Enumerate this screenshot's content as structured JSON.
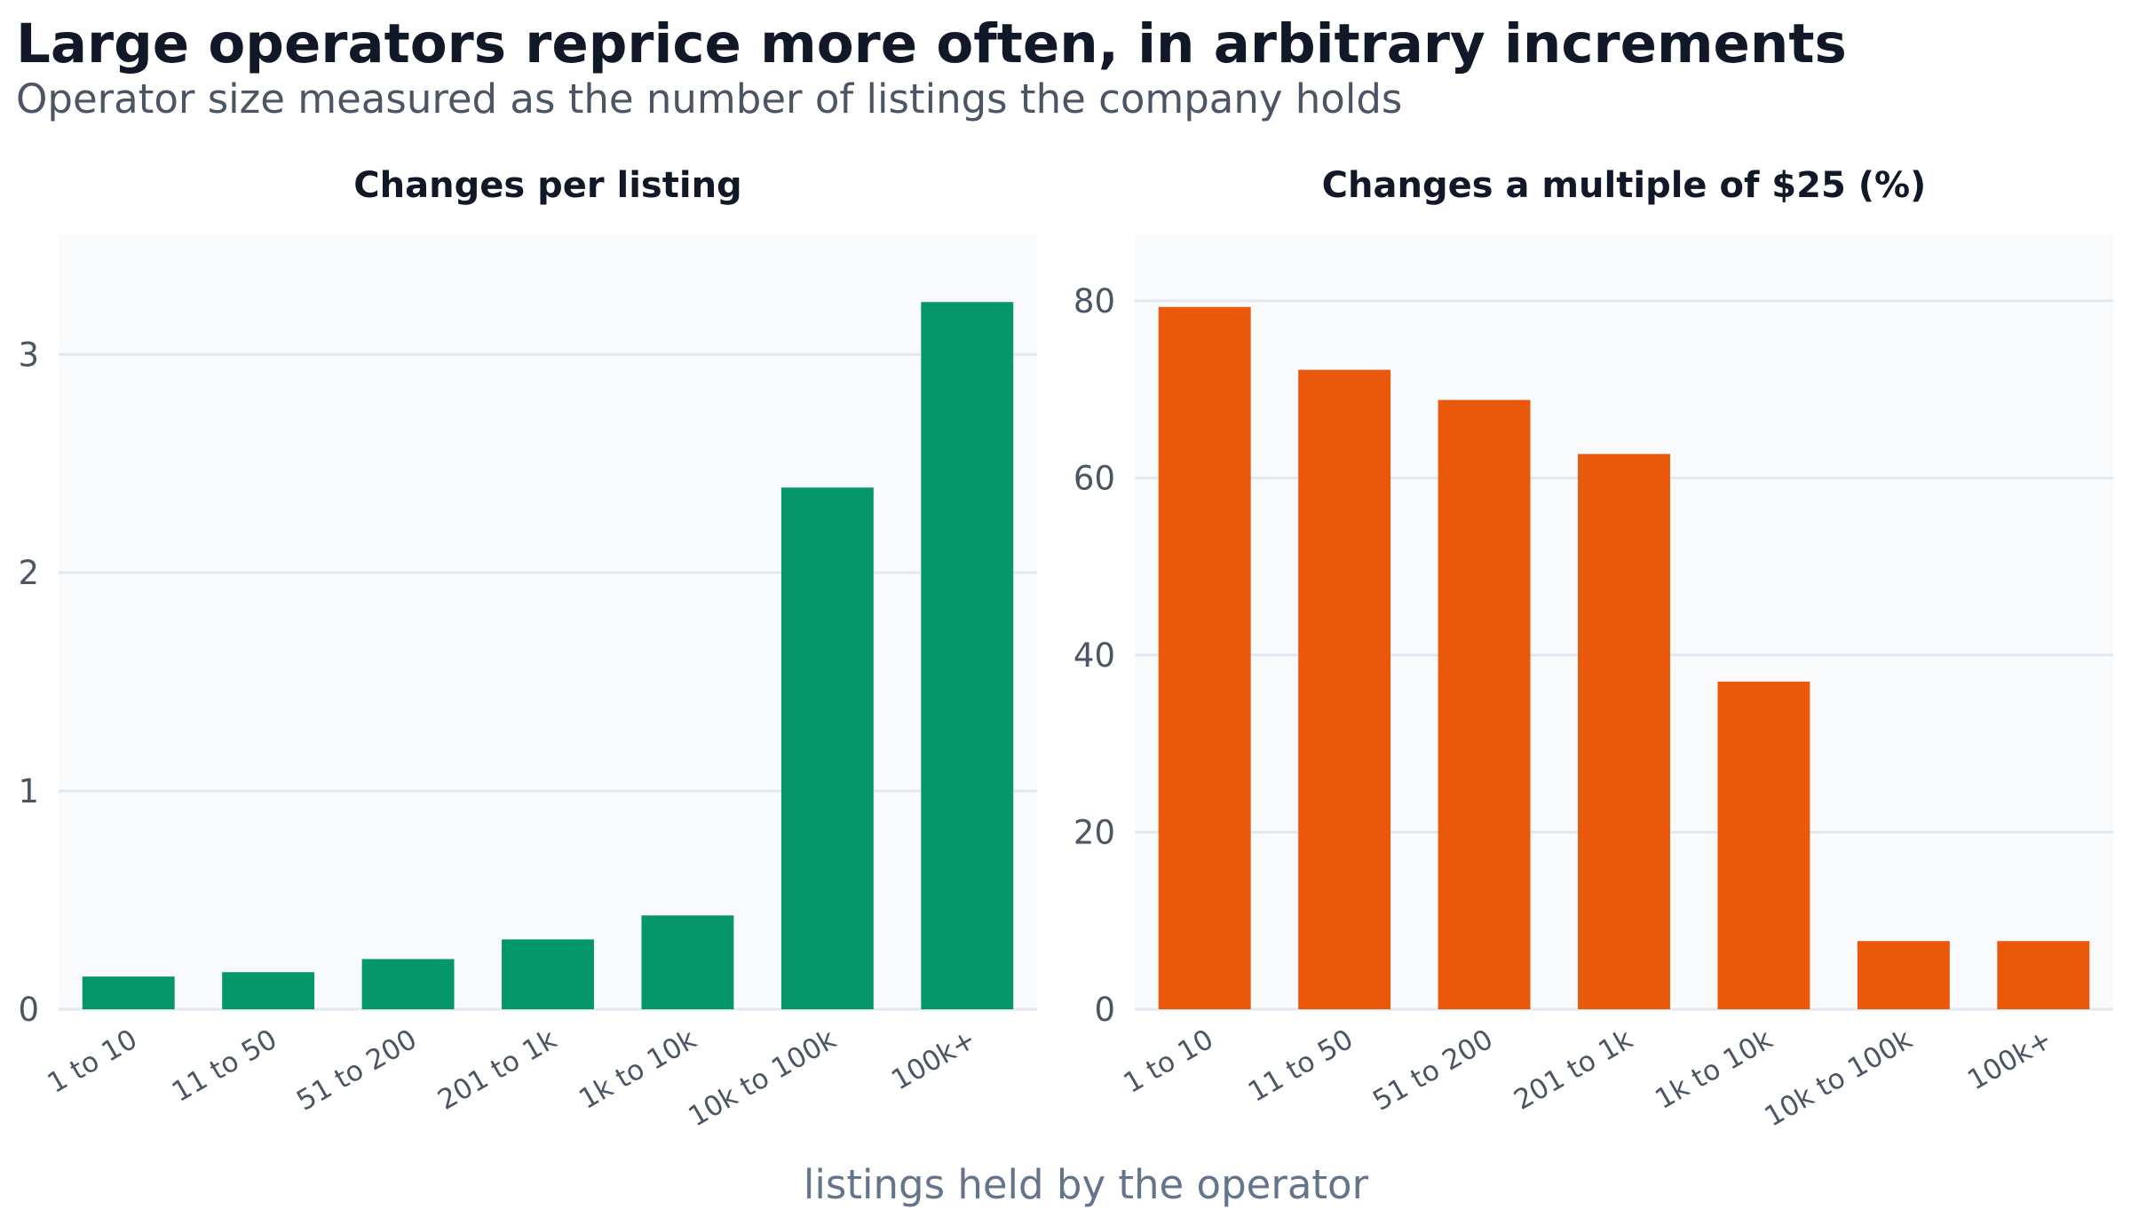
{
  "header": {
    "title": "Large operators reprice more often, in arbitrary increments",
    "subtitle": "Operator size measured as the number of listings the company holds"
  },
  "chart_data": {
    "type": "bar",
    "xlabel": "listings held by the operator",
    "categories": [
      "1 to 10",
      "11 to 50",
      "51 to 200",
      "201 to 1k",
      "1k to 10k",
      "10k to 100k",
      "100k+"
    ],
    "panels": [
      {
        "title": "Changes per listing",
        "values": [
          0.15,
          0.17,
          0.23,
          0.32,
          0.43,
          2.39,
          3.24
        ],
        "ylim": [
          0,
          3.55
        ],
        "yticks": [
          "0",
          "1",
          "2",
          "3"
        ],
        "color": "#059669",
        "grid": true
      },
      {
        "title": "Changes a multiple of $25 (%)",
        "values": [
          79.3,
          72.2,
          68.8,
          62.7,
          37.0,
          7.7,
          7.7
        ],
        "ylim": [
          0,
          87.5
        ],
        "yticks": [
          "0",
          "20",
          "40",
          "60",
          "80"
        ],
        "color": "#ea580c",
        "grid": true
      }
    ]
  }
}
